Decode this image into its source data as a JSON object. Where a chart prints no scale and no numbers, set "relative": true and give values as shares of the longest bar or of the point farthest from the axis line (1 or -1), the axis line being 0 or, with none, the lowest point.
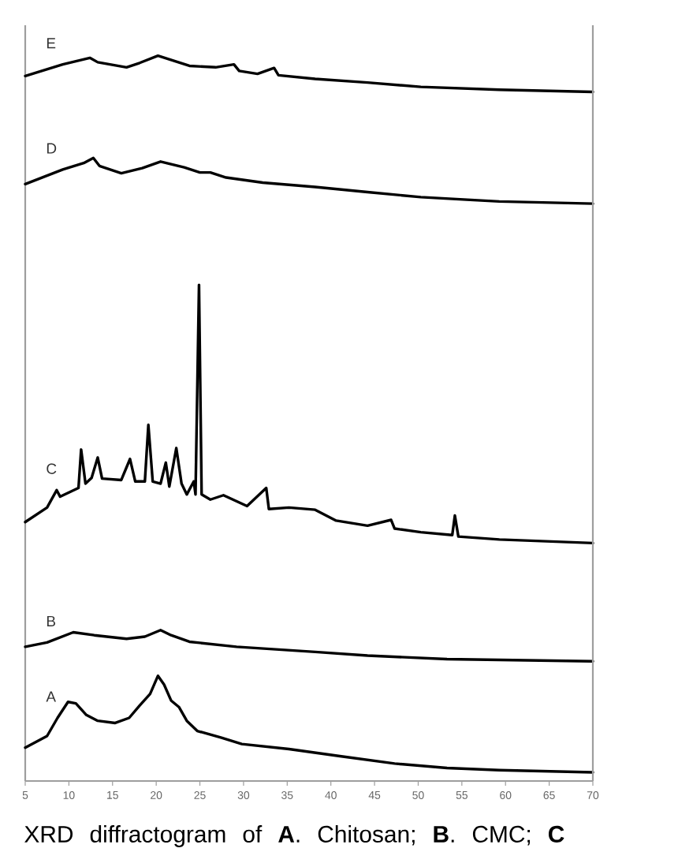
{
  "chart_data": {
    "type": "line",
    "relative": true,
    "xlim": [
      5,
      70
    ],
    "xticks": [
      5,
      10,
      15,
      20,
      25,
      30,
      35,
      40,
      45,
      50,
      55,
      60,
      65,
      70
    ],
    "annotations": [
      "XRD diffractogram of **A**. Chitosan; **B**. CMC; **C**"
    ],
    "series": [
      {
        "name": "A",
        "color": "#000000",
        "x": [
          5,
          7.5,
          8.7,
          9.9,
          10.8,
          12.0,
          13.3,
          15.3,
          16.9,
          18.1,
          19.3,
          20.2,
          20.9,
          21.7,
          22.6,
          23.5,
          24.7,
          27.4,
          29.8,
          35.2,
          41.2,
          47.3,
          53.3,
          59.3,
          70
        ],
        "values": [
          0.046,
          0.062,
          0.087,
          0.109,
          0.107,
          0.091,
          0.083,
          0.08,
          0.087,
          0.104,
          0.12,
          0.145,
          0.133,
          0.111,
          0.102,
          0.083,
          0.069,
          0.06,
          0.051,
          0.044,
          0.034,
          0.024,
          0.018,
          0.015,
          0.012
        ]
      },
      {
        "name": "B",
        "color": "#000000",
        "x": [
          5,
          7.5,
          10.5,
          12.9,
          16.6,
          18.7,
          20.5,
          21.7,
          23.8,
          29.2,
          38.2,
          44.2,
          53.3,
          70
        ],
        "values": [
          0.185,
          0.191,
          0.205,
          0.201,
          0.196,
          0.199,
          0.208,
          0.201,
          0.192,
          0.185,
          0.178,
          0.173,
          0.168,
          0.165
        ]
      },
      {
        "name": "C",
        "color": "#000000",
        "x": [
          5,
          7.5,
          8.6,
          9.0,
          11.1,
          11.4,
          11.9,
          12.6,
          13.3,
          13.8,
          16.0,
          17.0,
          17.6,
          18.7,
          19.1,
          19.6,
          20.5,
          21.1,
          21.5,
          22.3,
          22.9,
          23.5,
          24.3,
          24.5,
          24.9,
          25.2,
          26.2,
          27.7,
          30.4,
          32.6,
          32.9,
          35.2,
          38.2,
          40.6,
          44.2,
          46.9,
          47.3,
          50.3,
          53.9,
          54.2,
          54.6,
          59.3,
          70
        ],
        "values": [
          0.357,
          0.377,
          0.401,
          0.392,
          0.404,
          0.457,
          0.41,
          0.418,
          0.446,
          0.417,
          0.415,
          0.444,
          0.413,
          0.413,
          0.491,
          0.413,
          0.41,
          0.439,
          0.406,
          0.459,
          0.41,
          0.395,
          0.413,
          0.395,
          0.684,
          0.395,
          0.388,
          0.394,
          0.379,
          0.404,
          0.375,
          0.377,
          0.374,
          0.359,
          0.352,
          0.36,
          0.348,
          0.343,
          0.339,
          0.366,
          0.337,
          0.333,
          0.328
        ]
      },
      {
        "name": "D",
        "color": "#000000",
        "x": [
          5,
          9.3,
          11.7,
          12.8,
          13.5,
          16.0,
          18.4,
          20.5,
          23.2,
          25.0,
          26.2,
          28.0,
          32.2,
          38.2,
          44.2,
          50.3,
          59.3,
          70
        ],
        "values": [
          0.823,
          0.843,
          0.852,
          0.859,
          0.848,
          0.838,
          0.845,
          0.854,
          0.846,
          0.839,
          0.839,
          0.832,
          0.825,
          0.819,
          0.812,
          0.805,
          0.799,
          0.796
        ]
      },
      {
        "name": "E",
        "color": "#000000",
        "x": [
          5,
          9.3,
          12.4,
          13.3,
          16.6,
          18.1,
          20.2,
          23.8,
          26.8,
          28.9,
          29.5,
          31.6,
          33.5,
          34.0,
          38.2,
          44.2,
          50.3,
          59.3,
          70
        ],
        "values": [
          0.972,
          0.988,
          0.997,
          0.991,
          0.984,
          0.99,
          1.0,
          0.986,
          0.984,
          0.988,
          0.979,
          0.975,
          0.983,
          0.973,
          0.968,
          0.963,
          0.957,
          0.953,
          0.95
        ]
      }
    ]
  }
}
